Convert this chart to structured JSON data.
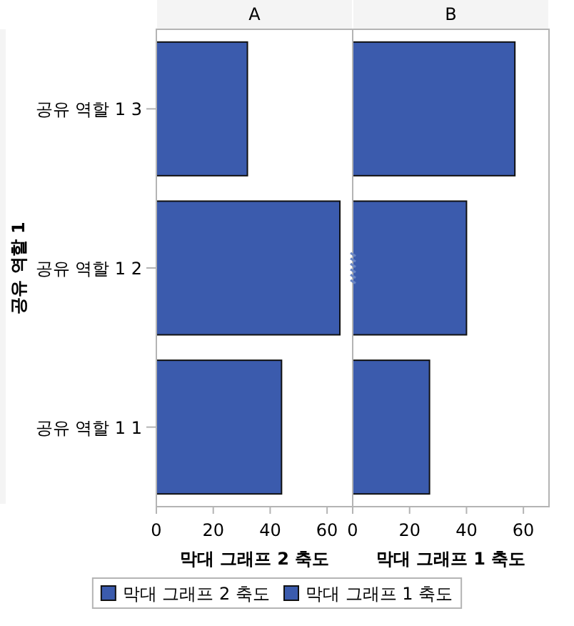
{
  "chart_data": [
    {
      "type": "bar",
      "orientation": "horizontal",
      "title": "A",
      "categories": [
        "공유 역할 1 3",
        "공유 역할 1 2",
        "공유 역할 1 1"
      ],
      "series": [
        {
          "name": "막대 그래프 2 축도",
          "color": "#3b5bad",
          "values": [
            32,
            64.5,
            44
          ]
        }
      ],
      "xlabel": "막대 그래프 2 축도",
      "ylabel": "공유 역할 1",
      "xlim": [
        0,
        69
      ],
      "xticks": [
        0,
        20,
        40,
        60
      ],
      "legend": "bottom"
    },
    {
      "type": "bar",
      "orientation": "horizontal",
      "title": "B",
      "categories": [
        "공유 역할 1 3",
        "공유 역할 1 2",
        "공유 역할 1 1"
      ],
      "series": [
        {
          "name": "막대 그래프 1 축도",
          "color": "#3b5bad",
          "values": [
            57,
            40,
            27
          ]
        }
      ],
      "xlabel": "막대 그래프 1 축도",
      "xlim": [
        0,
        69
      ],
      "xticks": [
        0,
        20,
        40,
        60
      ],
      "tick_labels": "x",
      "legend": "bottom"
    }
  ]
}
